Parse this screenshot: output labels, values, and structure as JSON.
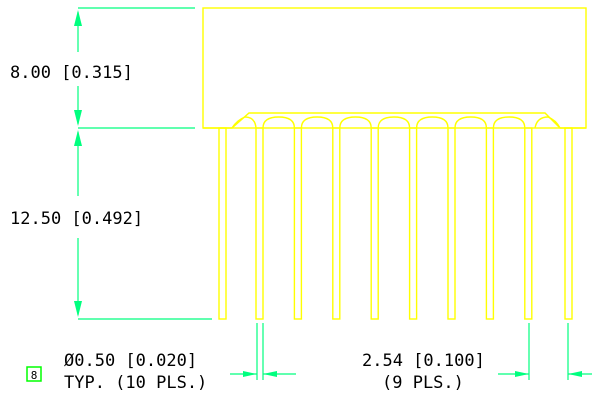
{
  "dimensions": {
    "body_height": "8.00 [0.315]",
    "pin_length": "12.50 [0.492]",
    "pin_diameter": "Ø0.50 [0.020]",
    "pin_diameter_note": "TYP. (10 PLS.)",
    "pitch": "2.54 [0.100]",
    "pitch_note": "(9 PLS.)"
  },
  "marker": {
    "label": "8"
  },
  "colors": {
    "outline": "#ffff00",
    "dimension_lines": "#00ff7f",
    "text": "#000000",
    "background": "#ffffff"
  },
  "pin_count": 10
}
